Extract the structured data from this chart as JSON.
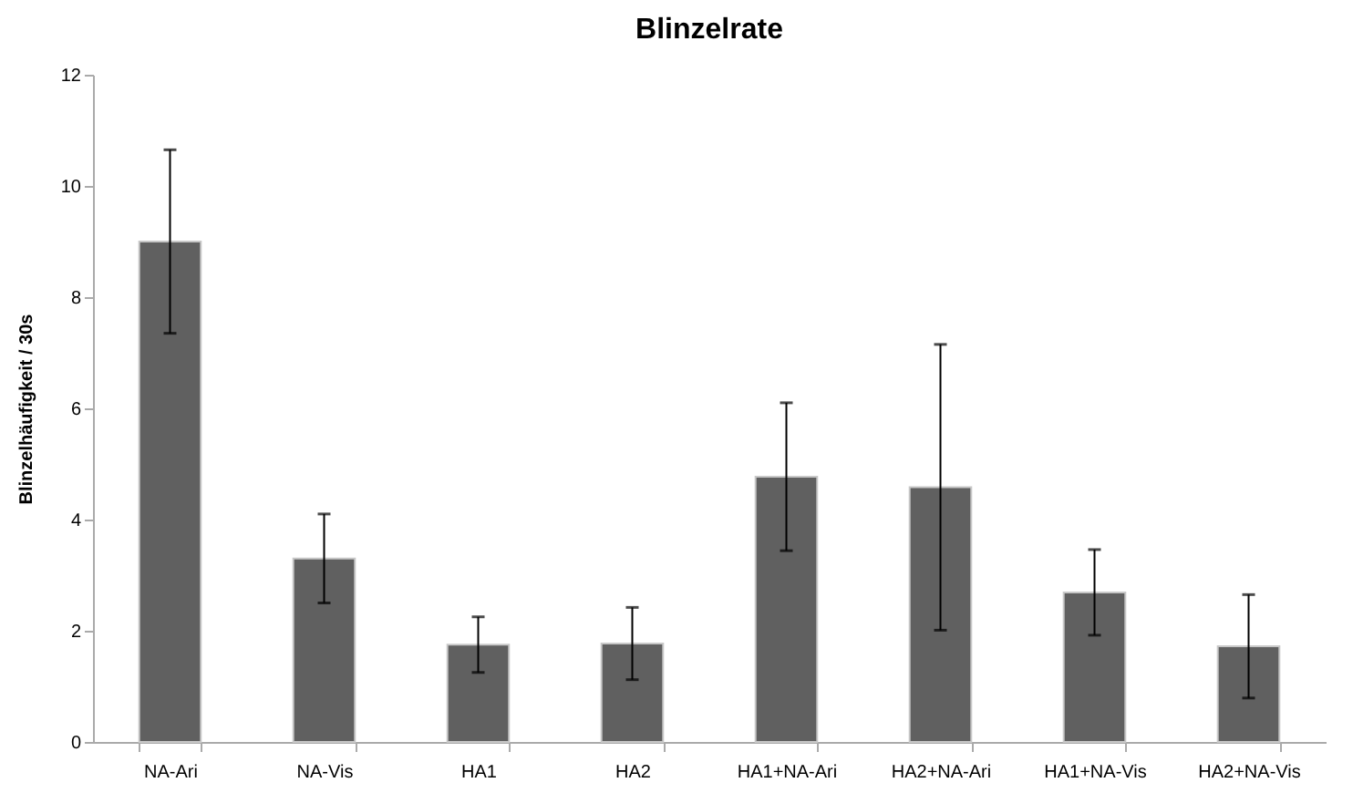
{
  "chart_data": {
    "type": "bar",
    "title": "Blinzelrate",
    "ylabel": "Blinzelhäufigkeit / 30s",
    "categories": [
      "NA-Ari",
      "NA-Vis",
      "HA1",
      "HA2",
      "HA1+NA-Ari",
      "HA2+NA-Ari",
      "HA1+NA-Vis",
      "HA2+NA-Vis"
    ],
    "values": [
      9.0,
      3.3,
      1.75,
      1.77,
      4.77,
      4.58,
      2.69,
      1.72
    ],
    "errors": [
      1.65,
      0.8,
      0.5,
      0.65,
      1.33,
      2.57,
      0.77,
      0.93
    ],
    "color": "#606060",
    "ylim": [
      0,
      12
    ],
    "yticks": [
      0,
      2,
      4,
      6,
      8,
      10,
      12
    ],
    "grid": false
  }
}
